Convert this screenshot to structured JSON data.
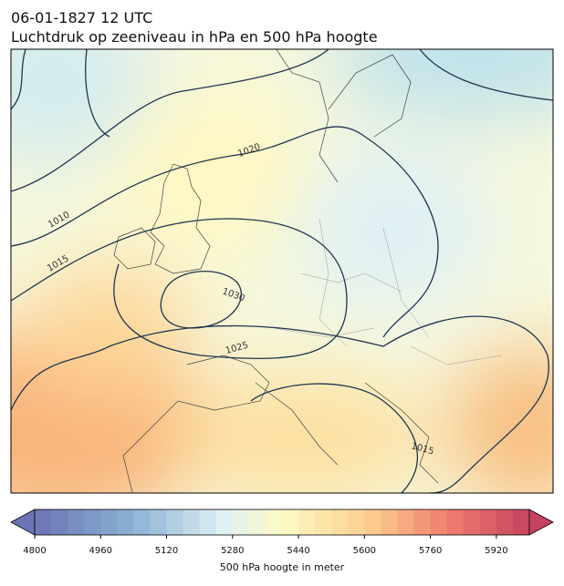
{
  "header": {
    "date": "06-01-1827 12 UTC",
    "title": "Luchtdruk op zeeniveau in hPa en 500 hPa hoogte"
  },
  "contour_labels": [
    "1020",
    "1010",
    "1015",
    "1030",
    "1025",
    "1015"
  ],
  "colorbar": {
    "label": "500 hPa hoogte in meter",
    "lim": [
      4800,
      6000
    ],
    "ticks": [
      4800,
      4960,
      5120,
      5280,
      5440,
      5600,
      5760,
      5920
    ]
  }
}
